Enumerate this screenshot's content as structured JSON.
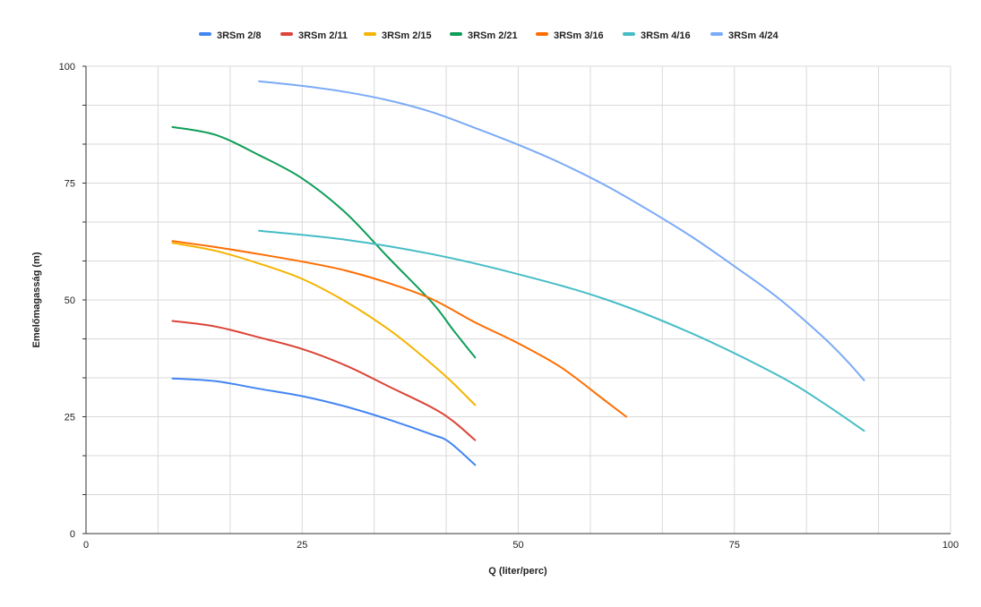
{
  "chart_data": {
    "type": "line",
    "title": "",
    "xlabel": "Q (liter/perc)",
    "ylabel": "Emelőmagasság (m)",
    "xlim": [
      0,
      100
    ],
    "ylim": [
      0,
      100
    ],
    "x_ticks": [
      "0",
      "25",
      "50",
      "75",
      "100"
    ],
    "y_ticks": [
      "0",
      "25",
      "50",
      "75",
      "100"
    ],
    "grid": true,
    "legend_position": "top",
    "series": [
      {
        "name": "3RSm 2/8",
        "color": "#4285F4",
        "points": [
          [
            10,
            33.2
          ],
          [
            15,
            32.6
          ],
          [
            20,
            31
          ],
          [
            25,
            29.4
          ],
          [
            30,
            27.2
          ],
          [
            35,
            24.4
          ],
          [
            40,
            21.2
          ],
          [
            42,
            19.6
          ],
          [
            45,
            14.7
          ]
        ]
      },
      {
        "name": "3RSm 2/11",
        "color": "#DB4437",
        "points": [
          [
            10,
            45.5
          ],
          [
            15,
            44.3
          ],
          [
            20,
            42
          ],
          [
            25,
            39.5
          ],
          [
            30,
            36
          ],
          [
            35,
            31.5
          ],
          [
            40,
            27
          ],
          [
            42.5,
            24
          ],
          [
            45,
            20
          ]
        ]
      },
      {
        "name": "3RSm 2/15",
        "color": "#F4B400",
        "points": [
          [
            10,
            62.2
          ],
          [
            15,
            60.5
          ],
          [
            20,
            57.8
          ],
          [
            25,
            54.5
          ],
          [
            30,
            49.7
          ],
          [
            35,
            43.7
          ],
          [
            38.5,
            38.6
          ],
          [
            42,
            33
          ],
          [
            45,
            27.5
          ]
        ]
      },
      {
        "name": "3RSm 2/21",
        "color": "#0F9D58",
        "points": [
          [
            10,
            87
          ],
          [
            15,
            85.3
          ],
          [
            20,
            81
          ],
          [
            25,
            76
          ],
          [
            30,
            68.7
          ],
          [
            35,
            59
          ],
          [
            40,
            49.5
          ],
          [
            42.5,
            43.5
          ],
          [
            45,
            37.7
          ]
        ]
      },
      {
        "name": "3RSm 3/16",
        "color": "#FF6D01",
        "points": [
          [
            10,
            62.6
          ],
          [
            15,
            61.3
          ],
          [
            20,
            59.8
          ],
          [
            25,
            58.2
          ],
          [
            30,
            56.3
          ],
          [
            35,
            53.6
          ],
          [
            40,
            50.2
          ],
          [
            45,
            45.2
          ],
          [
            50,
            40.7
          ],
          [
            55,
            35.5
          ],
          [
            60,
            28.5
          ],
          [
            62.5,
            25
          ]
        ]
      },
      {
        "name": "3RSm 4/16",
        "color": "#46BDC6",
        "points": [
          [
            20,
            64.8
          ],
          [
            30,
            62.9
          ],
          [
            40,
            59.8
          ],
          [
            50,
            55.5
          ],
          [
            60,
            50.2
          ],
          [
            70,
            42.9
          ],
          [
            80,
            33.9
          ],
          [
            85,
            28.3
          ],
          [
            90,
            22
          ]
        ]
      },
      {
        "name": "3RSm 4/24",
        "color": "#7BAAF7",
        "points": [
          [
            20,
            96.8
          ],
          [
            25,
            95.8
          ],
          [
            30,
            94.5
          ],
          [
            35,
            92.7
          ],
          [
            40,
            90.2
          ],
          [
            45,
            86.8
          ],
          [
            50,
            83.2
          ],
          [
            55,
            79.2
          ],
          [
            60,
            74.6
          ],
          [
            65,
            69.3
          ],
          [
            70,
            63.6
          ],
          [
            75,
            57.2
          ],
          [
            80,
            50.5
          ],
          [
            85,
            42.5
          ],
          [
            88,
            37
          ],
          [
            90,
            32.8
          ]
        ]
      }
    ]
  }
}
